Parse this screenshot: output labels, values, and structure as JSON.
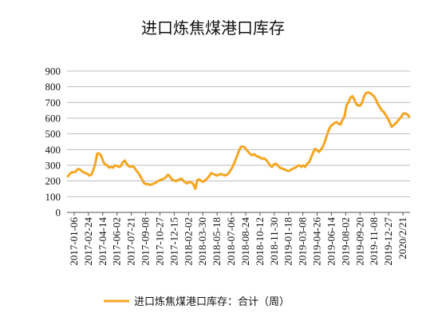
{
  "chart_data": {
    "type": "line",
    "title": "进口炼焦煤港口库存",
    "xlabel": "",
    "ylabel": "",
    "ylim": [
      0,
      900
    ],
    "yticks": [
      0,
      100,
      200,
      300,
      400,
      500,
      600,
      700,
      800,
      900
    ],
    "grid": true,
    "legend_position": "bottom",
    "x_tick_labels": [
      "2017-01-06",
      "2017-02-24",
      "2017-04-14",
      "2017-06-02",
      "2017-07-21",
      "2017-09-08",
      "2017-10-27",
      "2017-12-15",
      "2018-02-02",
      "2018-03-30",
      "2018-05-18",
      "2018-07-06",
      "2018-08-24",
      "2018-10-12",
      "2018-11-30",
      "2019-01-18",
      "2019-03-08",
      "2019-04-26",
      "2019-06-14",
      "2019-08-02",
      "2019-09-20",
      "2019-11-08",
      "2019-12-27",
      "2020/2/21"
    ],
    "series": [
      {
        "name": "进口炼焦煤港口库存：合计（周）",
        "color": "#F5A623",
        "values": [
          230,
          245,
          255,
          255,
          260,
          275,
          275,
          265,
          255,
          250,
          245,
          235,
          240,
          270,
          310,
          375,
          375,
          360,
          325,
          305,
          300,
          285,
          290,
          285,
          300,
          295,
          290,
          295,
          320,
          330,
          310,
          295,
          290,
          295,
          285,
          265,
          250,
          230,
          205,
          185,
          180,
          180,
          175,
          180,
          185,
          190,
          200,
          205,
          210,
          215,
          225,
          240,
          230,
          210,
          205,
          200,
          205,
          210,
          215,
          200,
          190,
          185,
          195,
          190,
          180,
          150,
          205,
          210,
          200,
          195,
          205,
          215,
          230,
          250,
          245,
          240,
          235,
          240,
          245,
          240,
          235,
          240,
          250,
          270,
          290,
          320,
          350,
          385,
          415,
          420,
          415,
          400,
          385,
          370,
          365,
          370,
          360,
          355,
          350,
          340,
          345,
          335,
          320,
          300,
          290,
          305,
          310,
          300,
          285,
          280,
          275,
          270,
          265,
          265,
          275,
          280,
          285,
          295,
          300,
          290,
          300,
          290,
          310,
          320,
          350,
          380,
          405,
          395,
          385,
          400,
          420,
          450,
          490,
          525,
          550,
          560,
          570,
          575,
          565,
          560,
          590,
          610,
          680,
          700,
          730,
          740,
          720,
          690,
          680,
          680,
          700,
          740,
          760,
          765,
          760,
          750,
          740,
          720,
          690,
          670,
          650,
          640,
          620,
          600,
          575,
          545,
          555,
          565,
          580,
          595,
          610,
          630,
          630,
          625,
          610
        ]
      }
    ]
  }
}
